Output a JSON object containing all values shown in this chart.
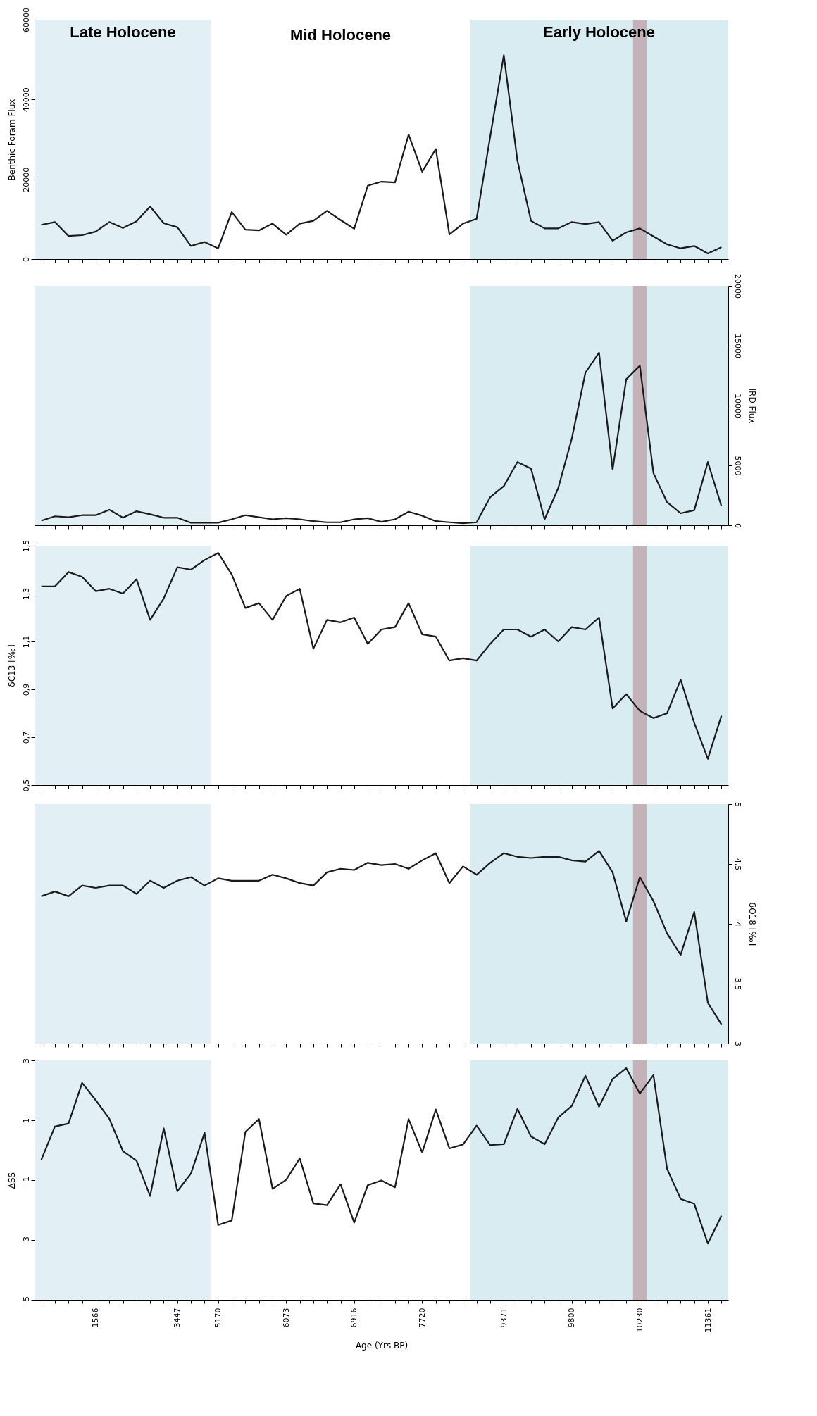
{
  "chart_data": [
    {
      "type": "line",
      "ylabel": "Benthic Foram Flux",
      "grid": false,
      "tick_labels": "y",
      "categories": [
        null,
        null,
        null,
        null,
        "1566",
        null,
        null,
        null,
        null,
        null,
        "3447",
        null,
        null,
        "5170",
        null,
        null,
        null,
        null,
        "6073",
        null,
        null,
        null,
        null,
        "6916",
        null,
        null,
        null,
        null,
        "7720",
        null,
        null,
        null,
        null,
        null,
        "9371",
        null,
        null,
        null,
        null,
        "9800",
        null,
        null,
        null,
        null,
        "10230",
        null,
        null,
        null,
        null,
        "11361",
        null
      ],
      "series": [
        {
          "color": "#1a1a1a",
          "values": [
            8600,
            9300,
            5800,
            6000,
            6900,
            9300,
            7800,
            9500,
            13200,
            9000,
            8000,
            3300,
            4300,
            2700,
            11800,
            7400,
            7200,
            8900,
            6100,
            8900,
            9600,
            12100,
            9800,
            7600,
            18400,
            19400,
            19200,
            31200,
            21900,
            27600,
            6200,
            8900,
            10100,
            30700,
            51100,
            24700,
            9600,
            7700,
            7700,
            9300,
            8800,
            9300,
            4600,
            6700,
            7700,
            5700,
            3700,
            2700,
            3300,
            1400,
            3000
          ]
        }
      ],
      "ylim": [
        0,
        60000
      ],
      "yticks": [
        0,
        20000,
        40000,
        60000
      ],
      "bands": [
        {
          "axis": "x",
          "from": "10230",
          "to": "10230",
          "color": "#c4b2b8"
        }
      ],
      "annotations": [
        "Late Holocene",
        "Mid Holocene",
        "Early Holocene"
      ]
    },
    {
      "type": "line",
      "y2label": "IRD Flux",
      "grid": false,
      "tick_labels": "y",
      "categories": [
        null,
        null,
        null,
        null,
        "1566",
        null,
        null,
        null,
        null,
        null,
        "3447",
        null,
        null,
        "5170",
        null,
        null,
        null,
        null,
        "6073",
        null,
        null,
        null,
        null,
        "6916",
        null,
        null,
        null,
        null,
        "7720",
        null,
        null,
        null,
        null,
        null,
        "9371",
        null,
        null,
        null,
        null,
        "9800",
        null,
        null,
        null,
        null,
        "10230",
        null,
        null,
        null,
        null,
        "11361",
        null
      ],
      "series": [
        {
          "color": "#1a1a1a",
          "axis": "y2",
          "values": [
            380,
            750,
            670,
            840,
            840,
            1300,
            630,
            1170,
            920,
            630,
            630,
            210,
            210,
            210,
            500,
            840,
            670,
            500,
            590,
            500,
            340,
            250,
            250,
            500,
            590,
            290,
            500,
            1130,
            800,
            340,
            250,
            170,
            250,
            2350,
            3270,
            5280,
            4740,
            500,
            3100,
            7250,
            12750,
            14420,
            4650,
            12200,
            13330,
            4360,
            1930,
            1000,
            1260,
            5280,
            1590
          ]
        }
      ],
      "y2lim": [
        0,
        20000
      ],
      "y2ticks": [
        0,
        5000,
        10000,
        15000,
        20000
      ],
      "bands": [
        {
          "axis": "x",
          "from": "10230",
          "to": "10230",
          "color": "#c4b2b8"
        }
      ]
    },
    {
      "type": "line",
      "ylabel": "δC13 [‰]",
      "grid": false,
      "tick_labels": "y",
      "categories": [
        null,
        null,
        null,
        null,
        "1566",
        null,
        null,
        null,
        null,
        null,
        "3447",
        null,
        null,
        "5170",
        null,
        null,
        null,
        null,
        "6073",
        null,
        null,
        null,
        null,
        "6916",
        null,
        null,
        null,
        null,
        "7720",
        null,
        null,
        null,
        null,
        null,
        "9371",
        null,
        null,
        null,
        null,
        "9800",
        null,
        null,
        null,
        null,
        "10230",
        null,
        null,
        null,
        null,
        "11361",
        null
      ],
      "series": [
        {
          "color": "#1a1a1a",
          "values": [
            1.33,
            1.33,
            1.39,
            1.37,
            1.31,
            1.32,
            1.3,
            1.36,
            1.19,
            1.28,
            1.41,
            1.4,
            1.44,
            1.47,
            1.38,
            1.24,
            1.26,
            1.19,
            1.29,
            1.32,
            1.07,
            1.19,
            1.18,
            1.2,
            1.09,
            1.15,
            1.16,
            1.26,
            1.13,
            1.12,
            1.02,
            1.03,
            1.02,
            1.09,
            1.15,
            1.15,
            1.12,
            1.15,
            1.1,
            1.16,
            1.15,
            1.2,
            0.82,
            0.88,
            0.81,
            0.78,
            0.8,
            0.94,
            0.76,
            0.61,
            0.79
          ]
        }
      ],
      "ylim": [
        0.5,
        1.5
      ],
      "yticks": [
        {
          "value": 0.5,
          "label": "0,5"
        },
        {
          "value": 0.7,
          "label": "0,7"
        },
        {
          "value": 0.9,
          "label": "0,9"
        },
        {
          "value": 1.1,
          "label": "1,1"
        },
        {
          "value": 1.3,
          "label": "1,3"
        },
        {
          "value": 1.5,
          "label": "1,5"
        }
      ],
      "bands": [
        {
          "axis": "x",
          "from": "10230",
          "to": "10230",
          "color": "#c4b2b8"
        }
      ]
    },
    {
      "type": "line",
      "y2label": "δO18 [‰]",
      "grid": false,
      "tick_labels": "y",
      "categories": [
        null,
        null,
        null,
        null,
        "1566",
        null,
        null,
        null,
        null,
        null,
        "3447",
        null,
        null,
        "5170",
        null,
        null,
        null,
        null,
        "6073",
        null,
        null,
        null,
        null,
        "6916",
        null,
        null,
        null,
        null,
        "7720",
        null,
        null,
        null,
        null,
        null,
        "9371",
        null,
        null,
        null,
        null,
        "9800",
        null,
        null,
        null,
        null,
        "10230",
        null,
        null,
        null,
        null,
        "11361",
        null
      ],
      "series": [
        {
          "color": "#1a1a1a",
          "axis": "y2",
          "values": [
            4.23,
            4.27,
            4.23,
            4.32,
            4.3,
            4.32,
            4.32,
            4.25,
            4.36,
            4.3,
            4.36,
            4.39,
            4.32,
            4.38,
            4.36,
            4.36,
            4.36,
            4.41,
            4.38,
            4.34,
            4.32,
            4.43,
            4.46,
            4.45,
            4.51,
            4.49,
            4.5,
            4.46,
            4.53,
            4.59,
            4.34,
            4.48,
            4.41,
            4.51,
            4.59,
            4.56,
            4.55,
            4.56,
            4.56,
            4.53,
            4.52,
            4.61,
            4.43,
            4.02,
            4.39,
            4.19,
            3.92,
            3.74,
            4.1,
            3.34,
            3.16
          ]
        }
      ],
      "y2lim": [
        3,
        5
      ],
      "y2ticks": [
        3,
        {
          "value": 3.5,
          "label": "3,5"
        },
        4,
        {
          "value": 4.5,
          "label": "4,5"
        },
        5
      ],
      "bands": [
        {
          "axis": "x",
          "from": "10230",
          "to": "10230",
          "color": "#c4b2b8"
        }
      ]
    },
    {
      "type": "line",
      "ylabel": "ΔSS",
      "xlabel": "Age (Yrs BP)",
      "grid": false,
      "categories": [
        null,
        null,
        null,
        null,
        "1566",
        null,
        null,
        null,
        null,
        null,
        "3447",
        null,
        null,
        "5170",
        null,
        null,
        null,
        null,
        "6073",
        null,
        null,
        null,
        null,
        "6916",
        null,
        null,
        null,
        null,
        "7720",
        null,
        null,
        null,
        null,
        null,
        "9371",
        null,
        null,
        null,
        null,
        "9800",
        null,
        null,
        null,
        null,
        "10230",
        null,
        null,
        null,
        null,
        "11361",
        null
      ],
      "series": [
        {
          "color": "#1a1a1a",
          "values": [
            -0.32,
            0.79,
            0.89,
            2.25,
            1.67,
            1.05,
            -0.03,
            -0.35,
            -1.53,
            0.73,
            -1.37,
            -0.78,
            0.58,
            -2.5,
            -2.35,
            0.61,
            1.04,
            -1.29,
            -0.99,
            -0.27,
            -1.78,
            -1.84,
            -1.14,
            -2.42,
            -1.17,
            -1.01,
            -1.24,
            1.04,
            -0.08,
            1.36,
            0.06,
            0.19,
            0.82,
            0.17,
            0.2,
            1.38,
            0.46,
            0.2,
            1.09,
            1.48,
            2.49,
            1.45,
            2.38,
            2.74,
            1.89,
            2.51,
            -0.62,
            -1.63,
            -1.79,
            -3.12,
            -2.19
          ]
        }
      ],
      "ylim": [
        -5,
        3
      ],
      "yticks": [
        -5,
        -3,
        -1,
        1,
        3
      ],
      "bands": [
        {
          "axis": "x",
          "from": "10230",
          "to": "10230",
          "color": "#c4b2b8"
        }
      ]
    }
  ]
}
